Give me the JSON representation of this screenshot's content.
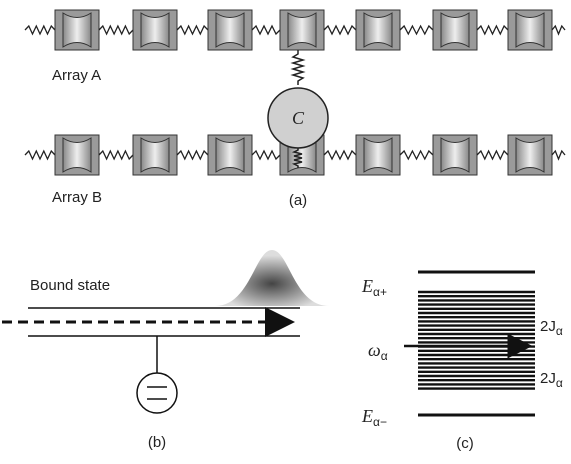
{
  "array_a": {
    "label": "Array A"
  },
  "array_b": {
    "label": "Array B"
  },
  "coupler": {
    "label": "C"
  },
  "panel_a": {
    "caption": "(a)"
  },
  "panel_b": {
    "label": "Bound state",
    "caption": "(b)"
  },
  "panel_c": {
    "caption": "(c)",
    "upper_edge": {
      "main": "E",
      "sub": "α+"
    },
    "lower_edge": {
      "main": "E",
      "sub": "α−"
    },
    "frequency": {
      "main": "ω",
      "sub": "α"
    },
    "upper_width": {
      "main": "2J",
      "sub": "α"
    },
    "lower_width": {
      "main": "2J",
      "sub": "α"
    }
  }
}
